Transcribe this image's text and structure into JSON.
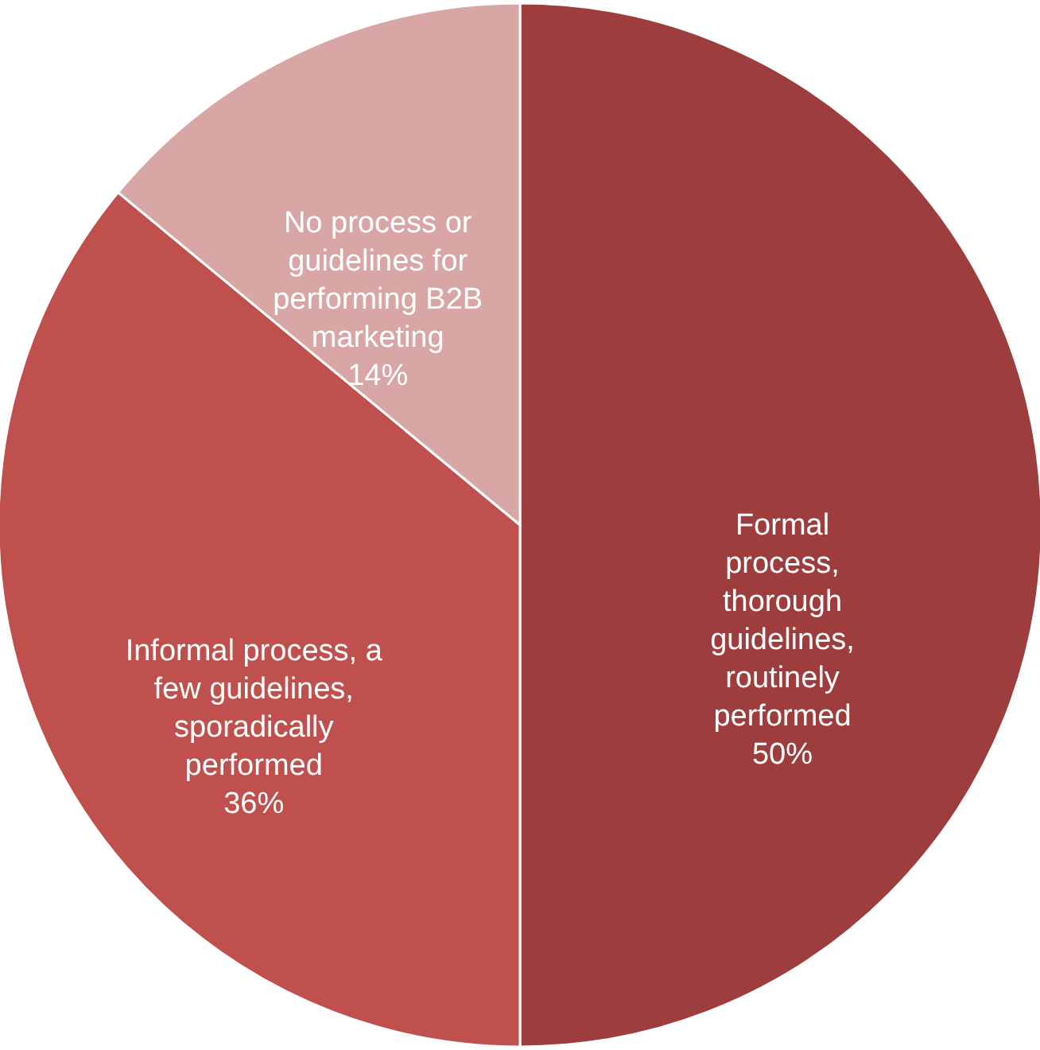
{
  "chart_data": {
    "type": "pie",
    "categories": [
      "Formal process, thorough guidelines, routinely performed",
      "Informal process, a few guidelines, sporadically performed",
      "No process or guidelines for performing B2B marketing"
    ],
    "values": [
      50,
      36,
      14
    ],
    "value_labels": [
      "50%",
      "36%",
      "14%"
    ],
    "colors": [
      "#9e3d3d",
      "#c0504d",
      "#d9a6a6"
    ]
  }
}
